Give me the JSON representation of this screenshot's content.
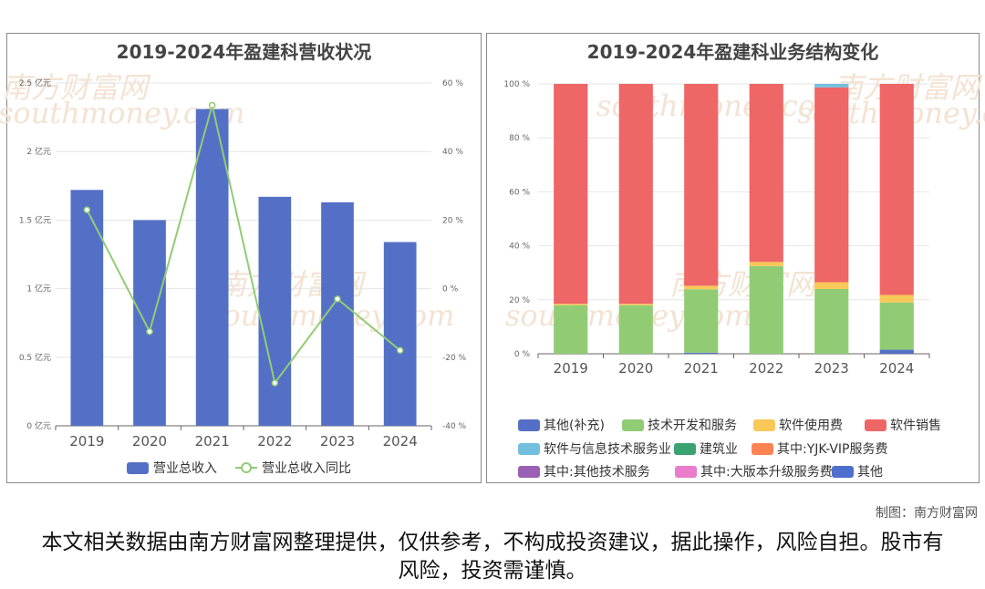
{
  "credit": "制图：南方财富网",
  "disclaimer": "本文相关数据由南方财富网整理提供，仅供参考，不构成投资建议，据此操作，风险自担。股市有风险，投资需谨慎。",
  "watermark": {
    "cn": "南方财富网",
    "en": "southmoney.com"
  },
  "chart_data": [
    {
      "type": "bar",
      "title": "2019-2024年盈建科营收状况",
      "categories": [
        "2019",
        "2020",
        "2021",
        "2022",
        "2023",
        "2024"
      ],
      "y_left": {
        "ticks": [
          "0 亿元",
          "0.5 亿元",
          "1 亿元",
          "1.5 亿元",
          "2 亿元",
          "2.5 亿元"
        ],
        "ylim": [
          0,
          2.5
        ]
      },
      "y_right": {
        "ticks": [
          "-40 %",
          "-20 %",
          "0 %",
          "20 %",
          "40 %",
          "60 %"
        ],
        "ylim": [
          -40,
          60
        ]
      },
      "series": [
        {
          "name": "营业总收入",
          "type": "bar",
          "axis": "left",
          "color": "#5470c6",
          "values": [
            1.72,
            1.5,
            2.31,
            1.67,
            1.63,
            1.34
          ]
        },
        {
          "name": "营业总收入同比",
          "type": "line",
          "axis": "right",
          "color": "#91cc75",
          "values": [
            23.0,
            -12.5,
            53.5,
            -27.5,
            -3.0,
            -18.0
          ]
        }
      ],
      "grid": true,
      "legend": "bottom"
    },
    {
      "type": "bar",
      "stacked": true,
      "title": "2019-2024年盈建科业务结构变化",
      "categories": [
        "2019",
        "2020",
        "2021",
        "2022",
        "2023",
        "2024"
      ],
      "y_ticks": [
        "0 %",
        "20 %",
        "40 %",
        "60 %",
        "80 %",
        "100 %"
      ],
      "ylim": [
        0,
        100
      ],
      "series": [
        {
          "name": "其他(补充)",
          "color": "#5470c6",
          "values": [
            0,
            0,
            0.4,
            0,
            0,
            1.5
          ]
        },
        {
          "name": "技术开发和服务",
          "color": "#91cc75",
          "values": [
            18,
            18,
            23.5,
            32.5,
            24,
            17.5
          ]
        },
        {
          "name": "软件使用费",
          "color": "#fac858",
          "values": [
            0.5,
            0.5,
            1.3,
            1.5,
            2.5,
            2.8
          ]
        },
        {
          "name": "软件销售",
          "color": "#ee6666",
          "values": [
            81.5,
            81.5,
            74.8,
            66,
            72.2,
            78.2
          ]
        },
        {
          "name": "软件与信息技术服务业",
          "color": "#73c0de",
          "values": [
            0,
            0,
            0,
            0,
            1.3,
            0
          ]
        },
        {
          "name": "建筑业",
          "color": "#3ba272",
          "values": [
            0,
            0,
            0,
            0,
            0,
            0
          ]
        },
        {
          "name": "其中:YJK-VIP服务费",
          "color": "#fc8452",
          "values": [
            0,
            0,
            0,
            0,
            0,
            0
          ]
        },
        {
          "name": "其中:其他技术服务",
          "color": "#9a60b4",
          "values": [
            0,
            0,
            0,
            0,
            0,
            0
          ]
        },
        {
          "name": "其中:大版本升级服务费",
          "color": "#ea7ccc",
          "values": [
            0,
            0,
            0,
            0,
            0,
            0
          ]
        },
        {
          "name": "其他",
          "color": "#4e6fce",
          "values": [
            0,
            0,
            0,
            0,
            0,
            0
          ]
        }
      ],
      "grid": true,
      "legend": "bottom"
    }
  ]
}
